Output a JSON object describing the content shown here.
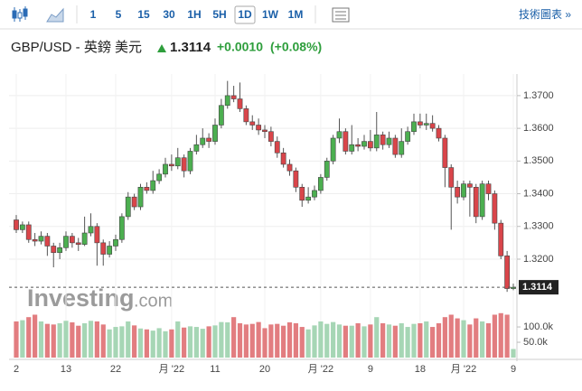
{
  "toolbar": {
    "intervals": [
      "1",
      "5",
      "15",
      "30",
      "1H",
      "5H",
      "1D",
      "1W",
      "1M"
    ],
    "link": "技術圖表 »"
  },
  "header": {
    "symbol": "GBP/USD - 英鎊 美元",
    "price": "1.3114",
    "change": "+0.0010",
    "change_pct": "(+0.08%)"
  },
  "watermark": [
    "Investing",
    ".com"
  ],
  "chart_data": {
    "type": "candlestick",
    "categories": [
      "2",
      null,
      null,
      null,
      null,
      null,
      null,
      null,
      "13",
      null,
      null,
      null,
      null,
      null,
      null,
      null,
      "22",
      null,
      null,
      null,
      null,
      null,
      null,
      null,
      null,
      "月 '22",
      null,
      null,
      null,
      null,
      null,
      null,
      "11",
      null,
      null,
      null,
      null,
      null,
      null,
      null,
      "20",
      null,
      null,
      null,
      null,
      null,
      null,
      null,
      null,
      "月 '22",
      null,
      null,
      null,
      null,
      null,
      null,
      null,
      "9",
      null,
      null,
      null,
      null,
      null,
      null,
      null,
      "18",
      null,
      null,
      null,
      null,
      null,
      null,
      "月 '22",
      null,
      null,
      null,
      null,
      null,
      null,
      null,
      "9"
    ],
    "open": [
      1.332,
      1.329,
      1.3305,
      1.326,
      1.3255,
      1.327,
      1.324,
      1.322,
      1.3235,
      1.327,
      1.325,
      1.3245,
      1.328,
      1.33,
      1.325,
      1.3215,
      1.324,
      1.326,
      1.333,
      1.339,
      1.336,
      1.342,
      1.341,
      1.344,
      1.346,
      1.349,
      1.3485,
      1.351,
      1.347,
      1.353,
      1.355,
      1.357,
      1.356,
      1.361,
      1.367,
      1.37,
      1.369,
      1.366,
      1.362,
      1.361,
      1.3595,
      1.359,
      1.356,
      1.3525,
      1.349,
      1.347,
      1.342,
      1.338,
      1.339,
      1.341,
      1.345,
      1.35,
      1.357,
      1.359,
      1.353,
      1.355,
      1.3545,
      1.356,
      1.354,
      1.358,
      1.355,
      1.357,
      1.352,
      1.356,
      1.359,
      1.362,
      1.361,
      1.3615,
      1.36,
      1.357,
      1.348,
      1.342,
      1.339,
      1.343,
      1.342,
      1.333,
      1.343,
      1.34,
      1.331,
      1.321,
      1.311
    ],
    "high": [
      1.3335,
      1.3315,
      1.3315,
      1.328,
      1.3285,
      1.328,
      1.325,
      1.325,
      1.3285,
      1.328,
      1.3265,
      1.333,
      1.334,
      1.331,
      1.326,
      1.3255,
      1.3275,
      1.334,
      1.3405,
      1.34,
      1.343,
      1.3435,
      1.347,
      1.3475,
      1.351,
      1.352,
      1.354,
      1.352,
      1.354,
      1.358,
      1.36,
      1.3585,
      1.363,
      1.369,
      1.3745,
      1.373,
      1.374,
      1.367,
      1.364,
      1.363,
      1.361,
      1.3605,
      1.3575,
      1.354,
      1.3505,
      1.348,
      1.343,
      1.342,
      1.3425,
      1.346,
      1.351,
      1.358,
      1.363,
      1.36,
      1.361,
      1.357,
      1.358,
      1.3595,
      1.365,
      1.359,
      1.359,
      1.358,
      1.36,
      1.3605,
      1.3645,
      1.3645,
      1.3645,
      1.364,
      1.361,
      1.358,
      1.349,
      1.344,
      1.344,
      1.344,
      1.343,
      1.344,
      1.344,
      1.341,
      1.332,
      1.3225,
      1.3125
    ],
    "low": [
      1.328,
      1.328,
      1.325,
      1.324,
      1.3245,
      1.321,
      1.3175,
      1.32,
      1.3225,
      1.3235,
      1.3225,
      1.324,
      1.327,
      1.318,
      1.318,
      1.3205,
      1.3225,
      1.325,
      1.332,
      1.335,
      1.335,
      1.34,
      1.34,
      1.343,
      1.345,
      1.347,
      1.3475,
      1.345,
      1.346,
      1.352,
      1.354,
      1.354,
      1.355,
      1.36,
      1.366,
      1.368,
      1.365,
      1.361,
      1.3595,
      1.358,
      1.357,
      1.3545,
      1.351,
      1.348,
      1.3455,
      1.3405,
      1.336,
      1.337,
      1.338,
      1.34,
      1.344,
      1.349,
      1.3555,
      1.352,
      1.352,
      1.353,
      1.3535,
      1.353,
      1.353,
      1.3535,
      1.354,
      1.351,
      1.351,
      1.355,
      1.358,
      1.36,
      1.3595,
      1.359,
      1.356,
      1.342,
      1.329,
      1.337,
      1.338,
      1.333,
      1.331,
      1.332,
      1.338,
      1.329,
      1.32,
      1.31,
      1.3105
    ],
    "close": [
      1.329,
      1.3305,
      1.326,
      1.3255,
      1.327,
      1.324,
      1.322,
      1.3235,
      1.327,
      1.325,
      1.3245,
      1.328,
      1.33,
      1.325,
      1.3215,
      1.324,
      1.326,
      1.333,
      1.339,
      1.336,
      1.342,
      1.341,
      1.344,
      1.346,
      1.349,
      1.3485,
      1.351,
      1.347,
      1.353,
      1.355,
      1.357,
      1.356,
      1.361,
      1.367,
      1.37,
      1.369,
      1.366,
      1.362,
      1.361,
      1.3595,
      1.359,
      1.356,
      1.3525,
      1.349,
      1.347,
      1.342,
      1.338,
      1.339,
      1.341,
      1.345,
      1.35,
      1.357,
      1.359,
      1.353,
      1.355,
      1.3545,
      1.356,
      1.354,
      1.358,
      1.355,
      1.357,
      1.352,
      1.356,
      1.359,
      1.362,
      1.361,
      1.3615,
      1.36,
      1.357,
      1.348,
      1.342,
      1.339,
      1.343,
      1.342,
      1.333,
      1.343,
      1.34,
      1.331,
      1.321,
      1.311,
      1.3114
    ],
    "volume": [
      118000,
      122000,
      132000,
      140000,
      118000,
      110000,
      108000,
      112000,
      120000,
      115000,
      104000,
      112000,
      120000,
      118000,
      108000,
      92000,
      100000,
      102000,
      118000,
      105000,
      95000,
      92000,
      88000,
      96000,
      86000,
      92000,
      118000,
      98000,
      102000,
      100000,
      94000,
      102000,
      105000,
      116000,
      115000,
      132000,
      112000,
      108000,
      110000,
      116000,
      96000,
      108000,
      110000,
      104000,
      115000,
      112000,
      100000,
      92000,
      105000,
      118000,
      110000,
      116000,
      108000,
      104000,
      104000,
      112000,
      102000,
      108000,
      132000,
      112000,
      108000,
      104000,
      112000,
      100000,
      110000,
      112000,
      118000,
      100000,
      112000,
      132000,
      140000,
      128000,
      122000,
      108000,
      128000,
      118000,
      112000,
      140000,
      145000,
      140000,
      28000
    ],
    "ylim": [
      1.3095,
      1.3766
    ],
    "yticks": [
      {
        "value": 1.32,
        "label": "1.3200"
      },
      {
        "value": 1.33,
        "label": "1.3300"
      },
      {
        "value": 1.34,
        "label": "1.3400"
      },
      {
        "value": 1.35,
        "label": "1.3500"
      },
      {
        "value": 1.36,
        "label": "1.3600"
      },
      {
        "value": 1.37,
        "label": "1.3700"
      }
    ],
    "vlim": [
      0,
      165000
    ],
    "vticks": [
      {
        "value": 100000,
        "label": "100.0k"
      },
      {
        "value": 50000,
        "label": "50.0k"
      }
    ],
    "last_price": 1.3114,
    "up_color": "#4caf50",
    "down_color": "#d9454a",
    "volume_up_color": "#a6d6b5",
    "volume_down_color": "#e27d80",
    "grid": true
  }
}
